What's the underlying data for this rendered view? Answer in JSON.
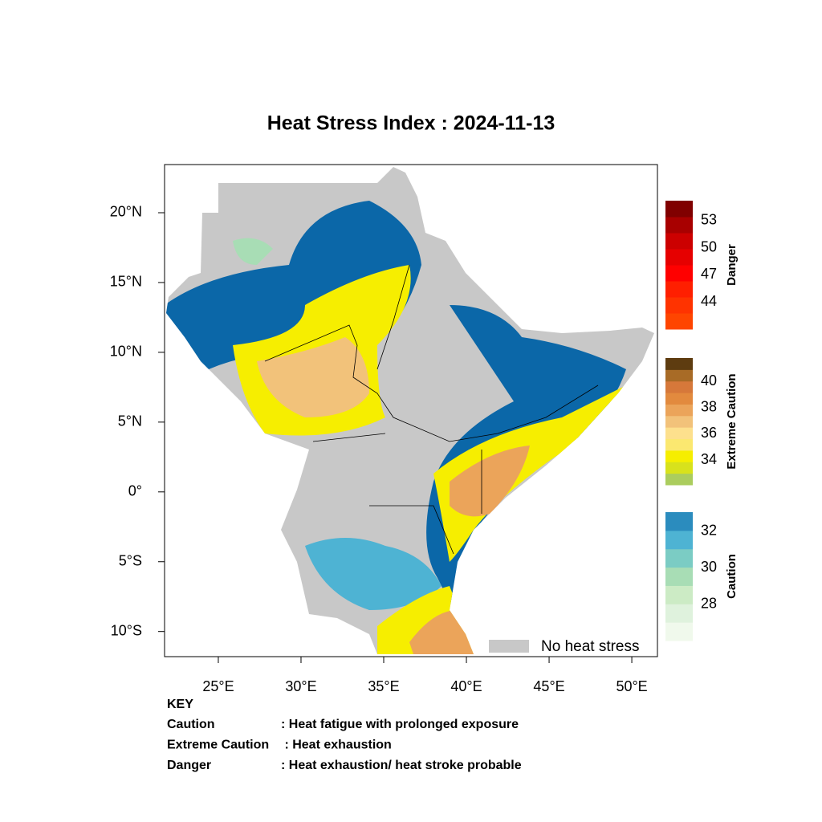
{
  "map": {
    "title": "Heat Stress Index : 2024-11-13",
    "xlim": [
      21.75,
      51.55
    ],
    "ylim": [
      -11.8,
      23.45
    ],
    "xticks": [
      {
        "value": 25,
        "label": "25°E"
      },
      {
        "value": 30,
        "label": "30°E"
      },
      {
        "value": 35,
        "label": "35°E"
      },
      {
        "value": 40,
        "label": "40°E"
      },
      {
        "value": 45,
        "label": "45°E"
      },
      {
        "value": 50,
        "label": "50°E"
      }
    ],
    "yticks": [
      {
        "value": 20,
        "label": "20°N"
      },
      {
        "value": 15,
        "label": "15°N"
      },
      {
        "value": 10,
        "label": "10°N"
      },
      {
        "value": 5,
        "label": "5°N"
      },
      {
        "value": 0,
        "label": "0°"
      },
      {
        "value": -5,
        "label": "5°S"
      },
      {
        "value": -10,
        "label": "10°S"
      }
    ],
    "no_stress_label": "No heat stress",
    "no_stress_color": "#c8c8c8",
    "colorbars": [
      {
        "title": "Danger",
        "range": [
          41,
          55.2
        ],
        "ticks": [
          44,
          47,
          50,
          53
        ],
        "colors": [
          "#ff4500",
          "#ff3300",
          "#ff1f00",
          "#ff0000",
          "#e60000",
          "#cc0000",
          "#a80000",
          "#800000"
        ]
      },
      {
        "title": "Extreme Caution",
        "range": [
          32.1,
          41.8
        ],
        "ticks": [
          34,
          36,
          38,
          40
        ],
        "colors": [
          "#abcd5e",
          "#d8e21c",
          "#f6ee00",
          "#fbe870",
          "#fde08d",
          "#f2c27a",
          "#eba45a",
          "#e28a3e",
          "#d6783a",
          "#a86b26",
          "#5e3c10"
        ]
      },
      {
        "title": "Caution",
        "range": [
          26,
          33.05
        ],
        "ticks": [
          28,
          30,
          32
        ],
        "colors": [
          "#f0f9ec",
          "#dff2dd",
          "#ccebc5",
          "#a8ddb5",
          "#7bccc4",
          "#4eb3d3",
          "#2b8cbe"
        ]
      }
    ],
    "key": {
      "heading": "KEY",
      "rows": [
        {
          "term": "Caution",
          "desc": ": Heat fatigue with prolonged exposure"
        },
        {
          "term": "Extreme Caution",
          "desc": " : Heat exhaustion"
        },
        {
          "term": "Danger",
          "desc": ": Heat exhaustion/ heat stroke probable"
        }
      ]
    }
  }
}
